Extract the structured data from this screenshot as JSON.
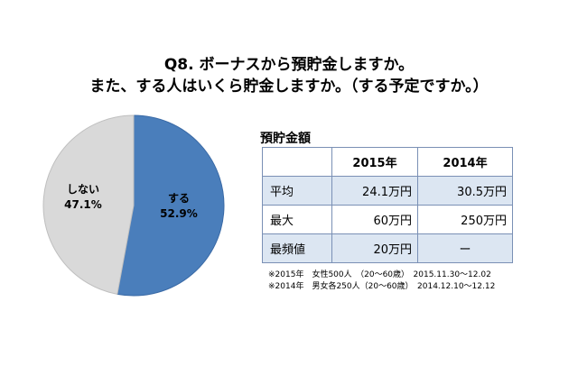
{
  "title": {
    "line1": "Q8. ボーナスから預貯金しますか。",
    "line2": "また、する人はいくら貯金しますか。（する予定ですか。）"
  },
  "chart_data": [
    {
      "type": "pie",
      "slices": [
        {
          "label": "する",
          "value": 52.9,
          "display": "52.9%",
          "color": "#4a7ebb"
        },
        {
          "label": "しない",
          "value": 47.1,
          "display": "47.1%",
          "color": "#d9d9d9"
        }
      ],
      "start": "top",
      "direction": "clockwise"
    },
    {
      "type": "table",
      "title": "預貯金額",
      "columns": [
        "",
        "2015年",
        "2014年"
      ],
      "rows": [
        {
          "label": "平均",
          "values": [
            "24.1万円",
            "30.5万円"
          ]
        },
        {
          "label": "最大",
          "values": [
            "60万円",
            "250万円"
          ]
        },
        {
          "label": "最頻値",
          "values": [
            "20万円",
            "ー"
          ]
        }
      ]
    }
  ],
  "notes": [
    "※2015年　女性500人　（20～60歳）　2015.11.30～12.02",
    "※2014年　男女各250人（20～60歳）　2014.12.10～12.12"
  ]
}
